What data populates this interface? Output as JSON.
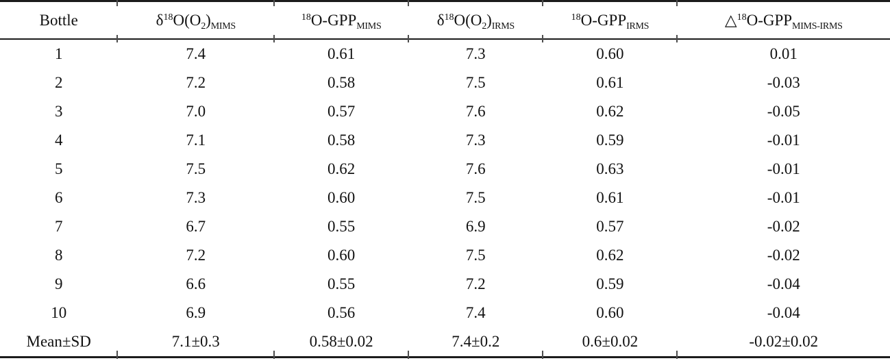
{
  "table": {
    "columns": [
      {
        "pre": "",
        "sup18": "",
        "base": "Bottle",
        "sub2": "",
        "close": "",
        "sub": ""
      },
      {
        "pre": "δ",
        "sup18": "18",
        "base": "O(O",
        "sub2": "2",
        "close": ")",
        "sub": "MIMS"
      },
      {
        "pre": "",
        "sup18": "18",
        "base": "O-GPP",
        "sub2": "",
        "close": "",
        "sub": "MIMS"
      },
      {
        "pre": "δ",
        "sup18": "18",
        "base": "O(O",
        "sub2": "2",
        "close": ")",
        "sub": "IRMS"
      },
      {
        "pre": "",
        "sup18": "18",
        "base": "O-GPP",
        "sub2": "",
        "close": "",
        "sub": "IRMS"
      },
      {
        "pre": "△",
        "sup18": "18",
        "base": "O-GPP",
        "sub2": "",
        "close": "",
        "sub": "MIMS-IRMS"
      }
    ],
    "rows": [
      [
        "1",
        "7.4",
        "0.61",
        "7.3",
        "0.60",
        "0.01"
      ],
      [
        "2",
        "7.2",
        "0.58",
        "7.5",
        "0.61",
        "-0.03"
      ],
      [
        "3",
        "7.0",
        "0.57",
        "7.6",
        "0.62",
        "-0.05"
      ],
      [
        "4",
        "7.1",
        "0.58",
        "7.3",
        "0.59",
        "-0.01"
      ],
      [
        "5",
        "7.5",
        "0.62",
        "7.6",
        "0.63",
        "-0.01"
      ],
      [
        "6",
        "7.3",
        "0.60",
        "7.5",
        "0.61",
        "-0.01"
      ],
      [
        "7",
        "6.7",
        "0.55",
        "6.9",
        "0.57",
        "-0.02"
      ],
      [
        "8",
        "7.2",
        "0.60",
        "7.5",
        "0.62",
        "-0.02"
      ],
      [
        "9",
        "6.6",
        "0.55",
        "7.2",
        "0.59",
        "-0.04"
      ],
      [
        "10",
        "6.9",
        "0.56",
        "7.4",
        "0.60",
        "-0.04"
      ],
      [
        "Mean±SD",
        "7.1±0.3",
        "0.58±0.02",
        "7.4±0.2",
        "0.6±0.02",
        "-0.02±0.02"
      ]
    ],
    "summary_row_label": "Mean±SD",
    "colors": {
      "text": "#111111",
      "rule": "#1c1c1c",
      "background": "#ffffff"
    }
  }
}
